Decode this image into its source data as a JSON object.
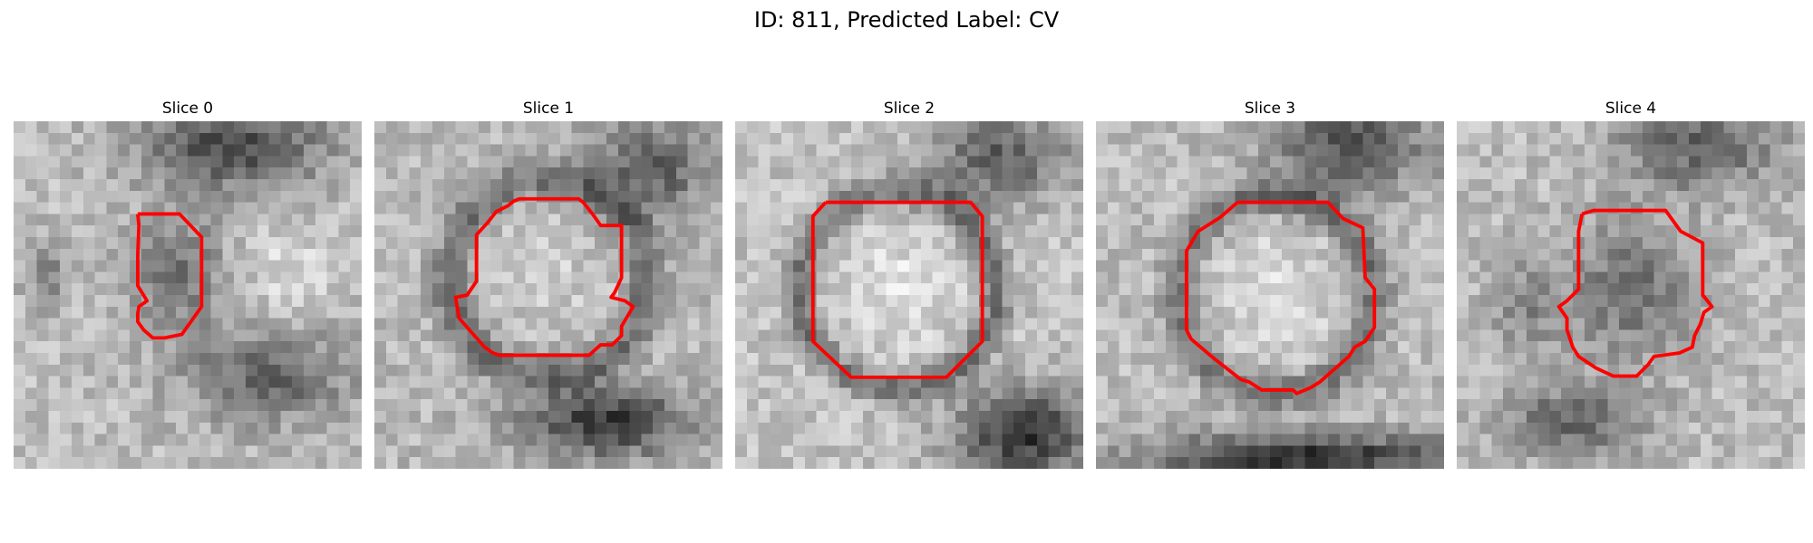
{
  "figure": {
    "title": "ID: 811, Predicted Label: CV"
  },
  "panels": [
    {
      "title": "Slice 0"
    },
    {
      "title": "Slice 1"
    },
    {
      "title": "Slice 2"
    },
    {
      "title": "Slice 3"
    },
    {
      "title": "Slice 4"
    }
  ],
  "colors": {
    "contour": "#ff0000",
    "background": "#ffffff"
  }
}
